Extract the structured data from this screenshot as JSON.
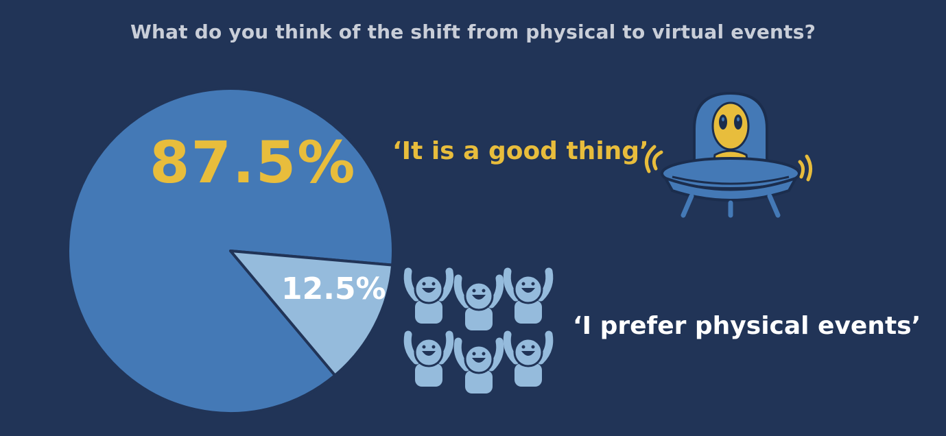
{
  "title": "What do you think of the shift from physical to virtual events?",
  "chart_data": {
    "type": "pie",
    "title": "What do you think of the shift from physical to virtual events?",
    "slices": [
      {
        "label": "'It is a good thing'",
        "value": 87.5,
        "display": "87.5%",
        "color": "#4479b6"
      },
      {
        "label": "'I prefer physical events'",
        "value": 12.5,
        "display": "12.5%",
        "color": "#95bbdc"
      }
    ]
  },
  "quotes": {
    "good": "‘It is a good thing’",
    "physical": "‘I prefer physical events’"
  },
  "icons": {
    "ufo": "alien-ufo-icon",
    "crowd": "cheering-crowd-icon"
  },
  "colors": {
    "background": "#213457",
    "accent_yellow": "#e8bd3c",
    "pie_major": "#4479b6",
    "pie_minor": "#95bbdc",
    "title_text": "#c9ced8"
  }
}
